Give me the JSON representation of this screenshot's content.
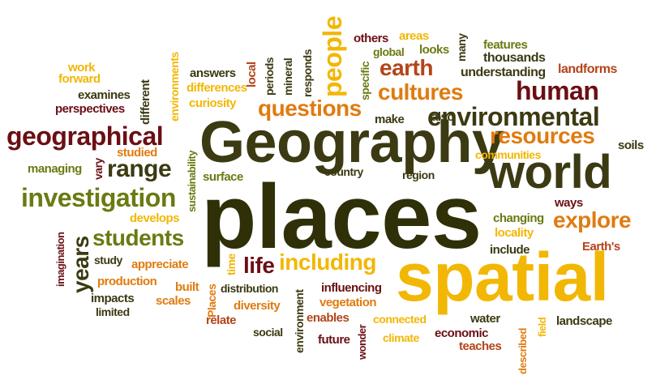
{
  "colors": {
    "olive": "#3b3a12",
    "darkolive": "#2f3008",
    "maroon": "#6b0f14",
    "rust": "#b4441a",
    "orange": "#e07b10",
    "gold": "#f2b705",
    "lightgold": "#f6c91a",
    "green": "#6b7a12"
  },
  "words": [
    "places",
    "Geography",
    "spatial",
    "world",
    "environmental",
    "geographical",
    "investigation",
    "questions",
    "earth",
    "cultures",
    "human",
    "resources",
    "explore",
    "students",
    "range",
    "people",
    "including",
    "life",
    "years",
    "others",
    "areas",
    "looks",
    "global",
    "many",
    "features",
    "thousands",
    "understanding",
    "landforms",
    "work",
    "forward",
    "examines",
    "perspectives",
    "different",
    "environments",
    "answers",
    "differences",
    "curiosity",
    "local",
    "periods",
    "mineral",
    "responds",
    "specific",
    "make",
    "also",
    "communities",
    "soils",
    "studied",
    "managing",
    "vary",
    "sustainability",
    "surface",
    "country",
    "region",
    "develops",
    "ways",
    "changing",
    "locality",
    "Earth's",
    "include",
    "imagination",
    "study",
    "appreciate",
    "production",
    "impacts",
    "limited",
    "built",
    "scales",
    "time",
    "Places",
    "distribution",
    "diversity",
    "relate",
    "environment",
    "social",
    "influencing",
    "vegetation",
    "enables",
    "connected",
    "future",
    "wonder",
    "climate",
    "water",
    "economic",
    "teaches",
    "described",
    "field",
    "landscape"
  ]
}
